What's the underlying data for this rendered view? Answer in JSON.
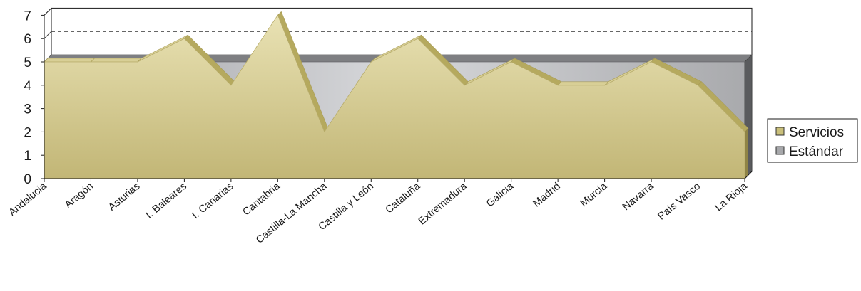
{
  "chart_data": {
    "type": "area",
    "categories": [
      "Andalucia",
      "Aragón",
      "Asturias",
      "I. Baleares",
      "I. Canarias",
      "Cantabria",
      "Castilla-La Mancha",
      "Castilla y León",
      "Cataluña",
      "Extremadura",
      "Galicia",
      "Madrid",
      "Murcia",
      "Navarra",
      "País Vasco",
      "La Rioja"
    ],
    "series": [
      {
        "name": "Servicios",
        "values": [
          5,
          5,
          5,
          6,
          4,
          7,
          2,
          5,
          6,
          4,
          5,
          4,
          4,
          5,
          4,
          2
        ],
        "color": "#c9bf7a"
      },
      {
        "name": "Estándar",
        "values": [
          5,
          5,
          5,
          5,
          5,
          5,
          5,
          5,
          5,
          5,
          5,
          5,
          5,
          5,
          5,
          5
        ],
        "color": "#a7a8ab"
      }
    ],
    "ylim": [
      0,
      7
    ],
    "yticks": [
      0,
      1,
      2,
      3,
      4,
      5,
      6,
      7
    ],
    "gridlines": [
      6
    ],
    "legend": "right",
    "title": "",
    "xlabel": "",
    "ylabel": ""
  }
}
